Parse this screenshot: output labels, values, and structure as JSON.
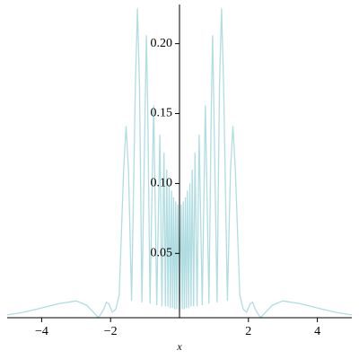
{
  "chart_data": {
    "type": "line",
    "x_label": "x",
    "x": [
      -5,
      -4.5,
      -4,
      -3.5,
      -3,
      -2.7,
      -2.5,
      -2.35,
      -2.2,
      -2.12,
      -2.05,
      -1.95,
      -1.85,
      -1.75,
      -1.62,
      -1.55,
      -1.48,
      -1.39,
      -1.28,
      -1.22,
      -1.16,
      -1.09,
      -1.0,
      -0.96,
      -0.92,
      -0.855,
      -0.75,
      -0.66,
      -0.57,
      -0.51,
      -0.45,
      -0.41,
      -0.37,
      -0.335,
      -0.3,
      -0.265,
      -0.23,
      -0.2,
      -0.17,
      -0.14,
      -0.11,
      -0.08,
      -0.05,
      0,
      0.05,
      0.08,
      0.11,
      0.14,
      0.17,
      0.2,
      0.23,
      0.265,
      0.3,
      0.335,
      0.37,
      0.41,
      0.45,
      0.51,
      0.57,
      0.66,
      0.75,
      0.855,
      0.92,
      0.96,
      1.0,
      1.09,
      1.16,
      1.22,
      1.28,
      1.39,
      1.48,
      1.55,
      1.62,
      1.75,
      1.85,
      1.95,
      2.05,
      2.12,
      2.2,
      2.35,
      2.5,
      2.7,
      3,
      3.5,
      4,
      4.5,
      5
    ],
    "series": [
      {
        "color": "#b0dde2",
        "values": [
          0.006,
          0.008,
          0.011,
          0.014,
          0.016,
          0.013,
          0.008,
          0.004,
          0.01,
          0.015,
          0.014,
          0.008,
          0.01,
          0.02,
          0.11,
          0.141,
          0.11,
          0.016,
          0.17,
          0.225,
          0.17,
          0.015,
          0.15,
          0.206,
          0.15,
          0.014,
          0.156,
          0.013,
          0.135,
          0.012,
          0.122,
          0.012,
          0.11,
          0.012,
          0.1,
          0.011,
          0.095,
          0.011,
          0.09,
          0.01,
          0.087,
          0.01,
          0.085,
          0.009,
          0.085,
          0.01,
          0.087,
          0.01,
          0.09,
          0.011,
          0.095,
          0.011,
          0.1,
          0.012,
          0.11,
          0.012,
          0.122,
          0.012,
          0.135,
          0.013,
          0.156,
          0.014,
          0.15,
          0.206,
          0.15,
          0.015,
          0.17,
          0.225,
          0.17,
          0.016,
          0.11,
          0.141,
          0.11,
          0.02,
          0.01,
          0.008,
          0.014,
          0.015,
          0.01,
          0.004,
          0.008,
          0.013,
          0.016,
          0.014,
          0.011,
          0.008,
          0.006
        ]
      }
    ],
    "xlim": [
      -5,
      5
    ],
    "ylim": [
      0.004,
      0.228
    ],
    "xticks": [
      {
        "value": -4,
        "label": "−4"
      },
      {
        "value": -2,
        "label": "−2"
      },
      2,
      4
    ],
    "yticks": [
      0.05,
      {
        "value": 0.1,
        "label": "0.10"
      },
      0.15,
      {
        "value": 0.2,
        "label": "0.20"
      }
    ]
  }
}
